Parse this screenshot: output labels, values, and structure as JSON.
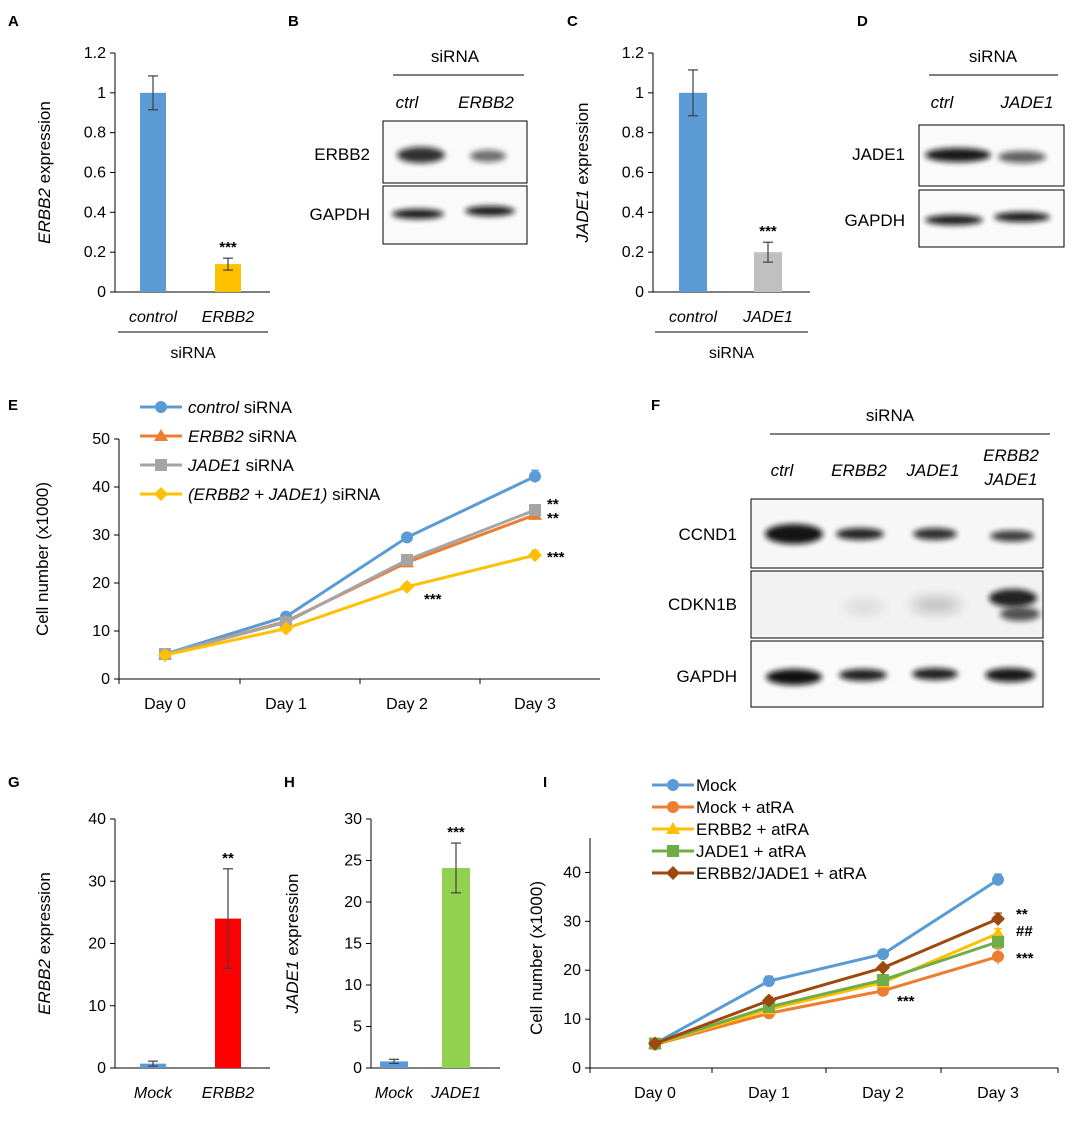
{
  "panel_letters": [
    "A",
    "B",
    "C",
    "D",
    "E",
    "F",
    "G",
    "H",
    "I"
  ],
  "colors": {
    "blue": "#5B9BD5",
    "orange": "#ED7D31",
    "gray": "#A5A5A5",
    "yellow": "#FFC000",
    "light_gray": "#C0C0C0",
    "red": "#FF0000",
    "green": "#92D050",
    "green_dark": "#70AD47",
    "brown": "#9E480E",
    "light_orange": "#FFC000"
  },
  "blots": {
    "B": {
      "header": "siRNA",
      "lanes": [
        "ctrl",
        "ERBB2"
      ],
      "rows": [
        "ERBB2",
        "GAPDH"
      ]
    },
    "D": {
      "header": "siRNA",
      "lanes": [
        "ctrl",
        "JADE1"
      ],
      "rows": [
        "JADE1",
        "GAPDH"
      ]
    },
    "F": {
      "header": "siRNA",
      "lanes": [
        "ctrl",
        "ERBB2",
        "JADE1",
        "ERBB2",
        "JADE1"
      ],
      "rows": [
        "CCND1",
        "CDKN1B",
        "GAPDH"
      ]
    }
  },
  "chart_data": [
    {
      "id": "A",
      "type": "bar",
      "title": "",
      "categories": [
        "control",
        "ERBB2"
      ],
      "values": [
        1.0,
        0.14
      ],
      "errors": [
        0.085,
        0.03
      ],
      "colors": [
        "#5B9BD5",
        "#FFC000"
      ],
      "significance": [
        "",
        "***"
      ],
      "ylabel_italic": "ERBB2",
      "ylabel_rest": " expression",
      "xgroup": "siRNA",
      "ylim": [
        0,
        1.2
      ],
      "yticks": [
        "0",
        "0.2",
        "0.4",
        "0.6",
        "0.8",
        "1",
        "1.2"
      ]
    },
    {
      "id": "C",
      "type": "bar",
      "title": "",
      "categories": [
        "control",
        "JADE1"
      ],
      "values": [
        1.0,
        0.2
      ],
      "errors": [
        0.115,
        0.05
      ],
      "colors": [
        "#5B9BD5",
        "#C0C0C0"
      ],
      "significance": [
        "",
        "***"
      ],
      "ylabel_italic": "JADE1",
      "ylabel_rest": " expression",
      "xgroup": "siRNA",
      "ylim": [
        0,
        1.2
      ],
      "yticks": [
        "0",
        "0.2",
        "0.4",
        "0.6",
        "0.8",
        "1",
        "1.2"
      ]
    },
    {
      "id": "E",
      "type": "line",
      "title": "",
      "categories": [
        "Day 0",
        "Day 1",
        "Day 2",
        "Day 3"
      ],
      "ylabel": "Cell number (x1000)",
      "ylim": [
        0,
        50
      ],
      "yticks": [
        "0",
        "10",
        "20",
        "30",
        "40",
        "50"
      ],
      "series": [
        {
          "name_italic": "control",
          "name_rest": " siRNA",
          "color": "#5B9BD5",
          "marker": "circle",
          "values": [
            5.2,
            13,
            29.5,
            42.2
          ],
          "errors": [
            0.5,
            0.6,
            0.7,
            1.3
          ]
        },
        {
          "name_italic": "ERBB2",
          "name_rest": " siRNA",
          "color": "#ED7D31",
          "marker": "triangle",
          "values": [
            5.1,
            12,
            24.3,
            34.2
          ],
          "errors": [
            0.5,
            0.6,
            0.7,
            0.8
          ]
        },
        {
          "name_italic": "JADE1",
          "name_rest": " siRNA",
          "color": "#A5A5A5",
          "marker": "square",
          "values": [
            5.2,
            11.8,
            24.8,
            35.2
          ],
          "errors": [
            0.5,
            0.6,
            0.7,
            0.8
          ]
        },
        {
          "name_italic": "(ERBB2 + JADE1)",
          "name_rest": " siRNA",
          "color": "#FFC000",
          "marker": "diamond",
          "values": [
            5.0,
            10.5,
            19.2,
            25.8
          ],
          "errors": [
            0.5,
            0.6,
            0.6,
            1.0
          ]
        }
      ],
      "annotations": [
        {
          "text": "**",
          "near": "JADE1 Day 3"
        },
        {
          "text": "**",
          "near": "ERBB2 Day 3"
        },
        {
          "text": "***",
          "near": "combo Day 3"
        },
        {
          "text": "***",
          "near": "combo Day 2"
        }
      ]
    },
    {
      "id": "G",
      "type": "bar",
      "title": "",
      "categories": [
        "Mock",
        "ERBB2"
      ],
      "values": [
        0.7,
        24.0
      ],
      "errors": [
        0.4,
        8.0
      ],
      "colors": [
        "#5B9BD5",
        "#FF0000"
      ],
      "significance": [
        "",
        "**"
      ],
      "ylabel_italic": "ERBB2",
      "ylabel_rest": " expression",
      "ylim": [
        0,
        40
      ],
      "yticks": [
        "0",
        "10",
        "20",
        "30",
        "40"
      ]
    },
    {
      "id": "H",
      "type": "bar",
      "title": "",
      "categories": [
        "Mock",
        "JADE1"
      ],
      "values": [
        0.8,
        24.1
      ],
      "errors": [
        0.25,
        3.0
      ],
      "colors": [
        "#5B9BD5",
        "#92D050"
      ],
      "significance": [
        "",
        "***"
      ],
      "ylabel_italic": "JADE1",
      "ylabel_rest": " expression",
      "ylim": [
        0,
        30
      ],
      "yticks": [
        "0",
        "5",
        "10",
        "15",
        "20",
        "25",
        "30"
      ]
    },
    {
      "id": "I",
      "type": "line",
      "title": "",
      "categories": [
        "Day 0",
        "Day 1",
        "Day 2",
        "Day 3"
      ],
      "ylabel": "Cell number (x1000)",
      "ylim": [
        0,
        45
      ],
      "yticks": [
        "0",
        "10",
        "20",
        "30",
        "40"
      ],
      "series": [
        {
          "name": "Mock",
          "color": "#5B9BD5",
          "marker": "circle",
          "values": [
            5.0,
            17.8,
            23.3,
            38.5
          ],
          "errors": [
            0.4,
            1.0,
            0.5,
            1.2
          ]
        },
        {
          "name": "Mock + atRA",
          "color": "#ED7D31",
          "marker": "circle",
          "values": [
            4.8,
            11.2,
            15.8,
            22.8
          ],
          "errors": [
            0.4,
            0.6,
            0.7,
            1.6
          ]
        },
        {
          "name": "ERBB2 + atRA",
          "color": "#FFC000",
          "marker": "triangle",
          "values": [
            4.9,
            12.0,
            17.5,
            27.5
          ],
          "errors": [
            0.4,
            0.6,
            0.6,
            1.0
          ]
        },
        {
          "name": "JADE1 + atRA",
          "color": "#70AD47",
          "marker": "square",
          "values": [
            5.0,
            12.5,
            18.0,
            25.8
          ],
          "errors": [
            0.4,
            0.6,
            0.6,
            1.0
          ]
        },
        {
          "name": "ERBB2/JADE1 + atRA",
          "color": "#9E480E",
          "marker": "diamond",
          "values": [
            5.0,
            13.8,
            20.5,
            30.5
          ],
          "errors": [
            0.4,
            0.7,
            0.6,
            1.2
          ]
        }
      ],
      "annotations": [
        {
          "text": "**",
          "near": "ERBB2/JADE1 Day 3"
        },
        {
          "text": "##",
          "near": "ERBB2 Day 3"
        },
        {
          "text": "***",
          "near": "Mock + atRA Day 3"
        },
        {
          "text": "***",
          "near": "Mock + atRA Day 2"
        }
      ]
    }
  ]
}
